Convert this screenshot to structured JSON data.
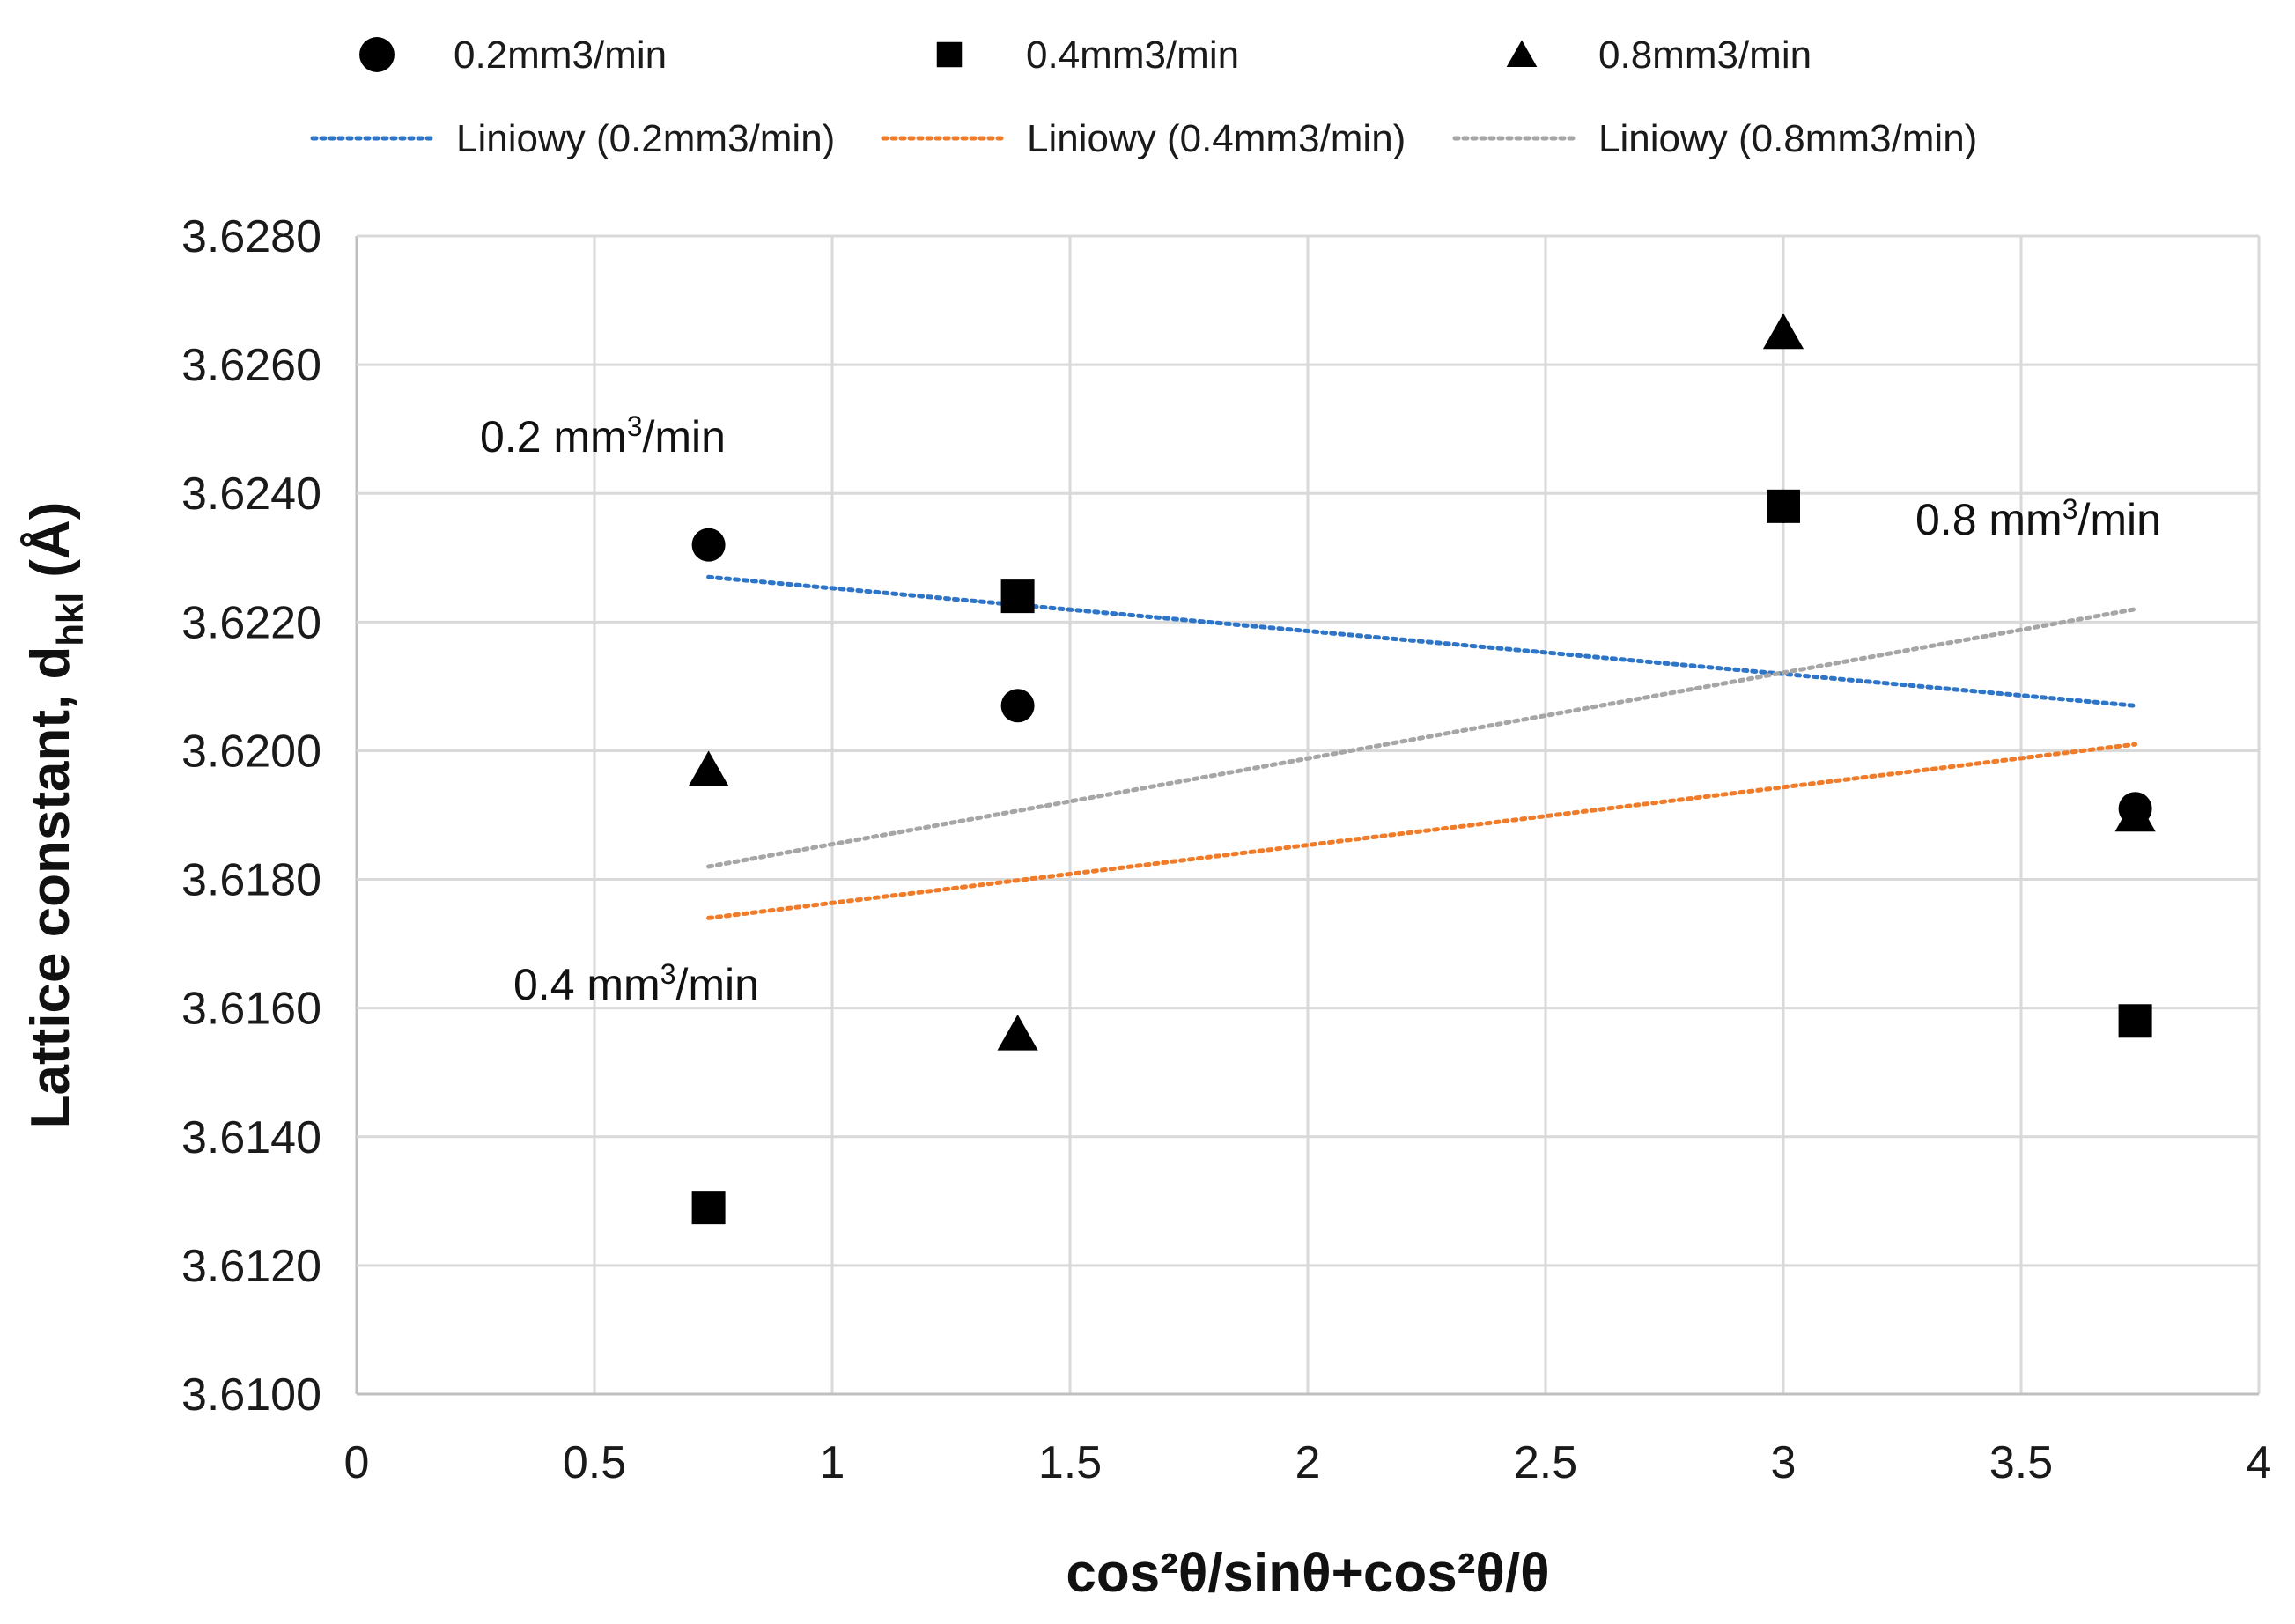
{
  "chart_data": {
    "type": "scatter",
    "title": "",
    "xlabel": "cos²θ/sinθ+cos²θ/θ",
    "ylabel_main": "Lattice constant, d",
    "ylabel_sub": "hkl",
    "ylabel_unit": " (Å)",
    "xlim": [
      0,
      4
    ],
    "ylim": [
      3.61,
      3.628
    ],
    "x_ticks": [
      0,
      0.5,
      1,
      1.5,
      2,
      2.5,
      3,
      3.5,
      4
    ],
    "x_tick_labels": [
      "0",
      "0.5",
      "1",
      "1.5",
      "2",
      "2.5",
      "3",
      "3.5",
      "4"
    ],
    "y_ticks": [
      3.61,
      3.612,
      3.614,
      3.616,
      3.618,
      3.62,
      3.622,
      3.624,
      3.626,
      3.628
    ],
    "y_tick_labels": [
      "3.6100",
      "3.6120",
      "3.6140",
      "3.6160",
      "3.6180",
      "3.6200",
      "3.6220",
      "3.6240",
      "3.6260",
      "3.6280"
    ],
    "grid": true,
    "legend_position": "top",
    "series": [
      {
        "name": "0.2mm3/min",
        "marker": "circle",
        "color": "#000000",
        "x": [
          0.74,
          1.39,
          3.0,
          3.74
        ],
        "y": [
          3.6232,
          3.6207,
          3.6238,
          3.6191
        ],
        "trendline": {
          "name": "Liniowy (0.2mm3/min)",
          "color": "#2e75c8",
          "x": [
            0.74,
            3.74
          ],
          "y": [
            3.6227,
            3.6207
          ]
        }
      },
      {
        "name": "0.4mm3/min",
        "marker": "square",
        "color": "#000000",
        "x": [
          0.74,
          1.39,
          3.0,
          3.74
        ],
        "y": [
          3.6129,
          3.6224,
          3.6238,
          3.6158
        ],
        "trendline": {
          "name": "Liniowy (0.4mm3/min)",
          "color": "#f07c2a",
          "x": [
            0.74,
            3.74
          ],
          "y": [
            3.6174,
            3.6201
          ]
        }
      },
      {
        "name": "0.8mm3/min",
        "marker": "triangle",
        "color": "#000000",
        "x": [
          0.74,
          1.39,
          3.0,
          3.74
        ],
        "y": [
          3.6197,
          3.6156,
          3.6265,
          3.619
        ],
        "trendline": {
          "name": "Liniowy (0.8mm3/min)",
          "color": "#a6a6a6",
          "x": [
            0.74,
            3.74
          ],
          "y": [
            3.6182,
            3.6222
          ]
        }
      }
    ],
    "annotations": [
      {
        "text": "0.2 mm",
        "sup": "3",
        "suffix": "/min"
      },
      {
        "text": "0.4 mm",
        "sup": "3",
        "suffix": "/min"
      },
      {
        "text": "0.8 mm",
        "sup": "3",
        "suffix": "/min"
      }
    ]
  },
  "colors": {
    "grid": "#d9d9d9",
    "axis": "#bfbfbf",
    "marker": "#000000"
  }
}
